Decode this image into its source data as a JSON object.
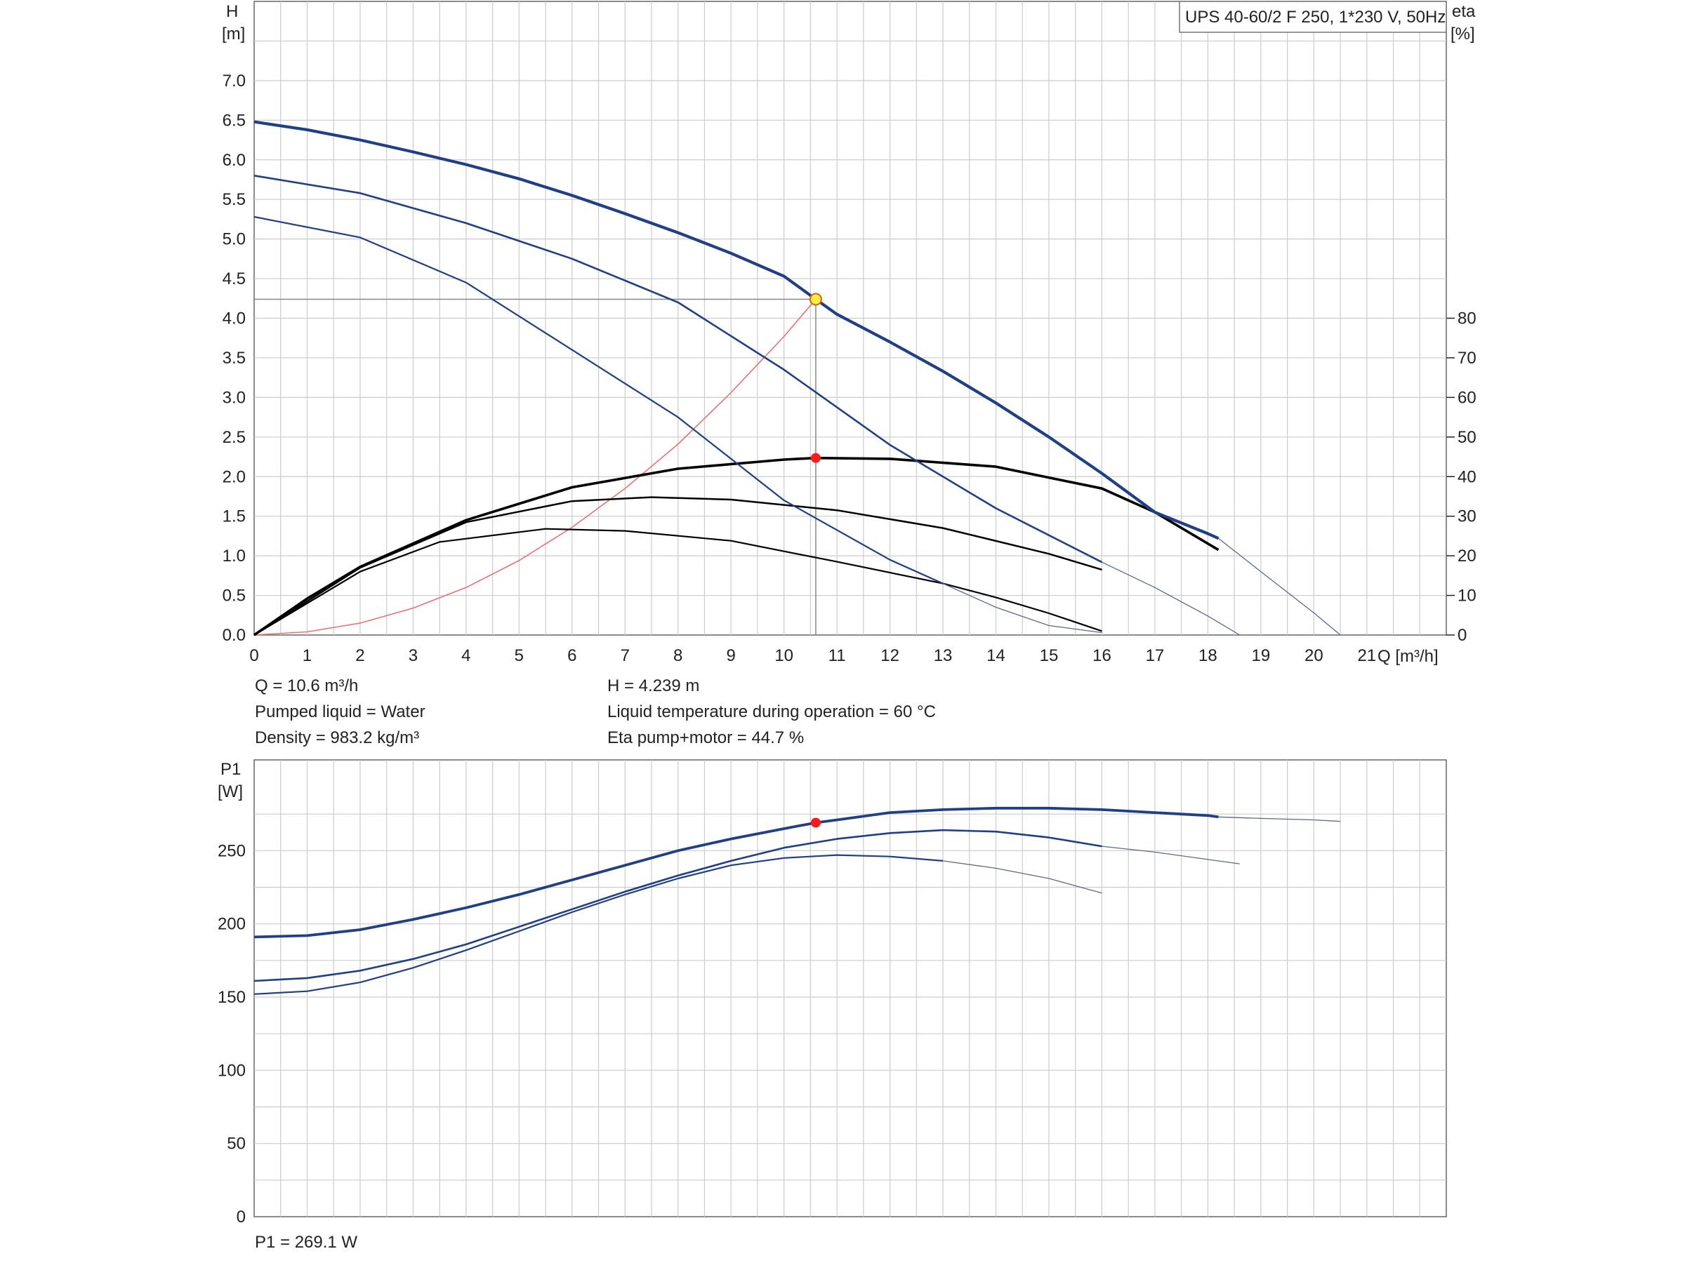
{
  "chart_data": [
    {
      "type": "line",
      "title": "UPS 40-60/2 F 250, 1*230 V, 50Hz",
      "xlabel": "Q [m³/h]",
      "ylabel_top": "H",
      "ylabel_unit": "[m]",
      "y2label_top": "eta",
      "y2label_unit": "[%]",
      "xlim": [
        0,
        22.5
      ],
      "ylim": [
        0,
        8.0
      ],
      "y2lim": [
        0,
        80
      ],
      "grid": true,
      "x_ticks": [
        "0",
        "1",
        "2",
        "3",
        "4",
        "5",
        "6",
        "7",
        "8",
        "9",
        "10",
        "11",
        "12",
        "13",
        "14",
        "15",
        "16",
        "17",
        "18",
        "19",
        "20",
        "21"
      ],
      "y_ticks": [
        "0.0",
        "0.5",
        "1.0",
        "1.5",
        "2.0",
        "2.5",
        "3.0",
        "3.5",
        "4.0",
        "4.5",
        "5.0",
        "5.5",
        "6.0",
        "6.5",
        "7.0"
      ],
      "y2_ticks": [
        "0",
        "10",
        "20",
        "30",
        "40",
        "50",
        "60",
        "70",
        "80"
      ],
      "head_curves": [
        {
          "speed": 3,
          "x": [
            0,
            1,
            2,
            3,
            4,
            5,
            6,
            7,
            8,
            9,
            10,
            10.6,
            11,
            12,
            13,
            14,
            15,
            16,
            17,
            18,
            18.2
          ],
          "y": [
            6.48,
            6.38,
            6.25,
            6.1,
            5.94,
            5.76,
            5.55,
            5.32,
            5.08,
            4.82,
            4.53,
            4.24,
            4.05,
            3.7,
            3.33,
            2.93,
            2.5,
            2.04,
            1.55,
            1.28,
            1.22
          ]
        },
        {
          "speed": 2,
          "x": [
            0,
            2,
            4,
            6,
            8,
            10,
            12,
            14,
            16
          ],
          "y": [
            5.8,
            5.58,
            5.2,
            4.75,
            4.2,
            3.35,
            2.4,
            1.6,
            0.92
          ]
        },
        {
          "speed": 1,
          "x": [
            0,
            2,
            4,
            6,
            8,
            10,
            12,
            13
          ],
          "y": [
            5.28,
            5.02,
            4.45,
            3.6,
            2.75,
            1.7,
            0.95,
            0.65
          ]
        }
      ],
      "head_tails": [
        {
          "x": [
            18.2,
            19,
            20,
            20.5
          ],
          "y": [
            1.22,
            0.8,
            0.28,
            0.0
          ]
        },
        {
          "x": [
            16,
            17,
            18,
            18.6
          ],
          "y": [
            0.92,
            0.6,
            0.24,
            0.0
          ]
        },
        {
          "x": [
            13,
            14,
            15,
            16
          ],
          "y": [
            0.65,
            0.35,
            0.12,
            0.03
          ]
        }
      ],
      "efficiency_curves": [
        {
          "speed": 3,
          "x": [
            0,
            1,
            2,
            4,
            6,
            8,
            10,
            10.6,
            12,
            14,
            16,
            17,
            18.2
          ],
          "y": [
            0,
            9.2,
            17.2,
            29.0,
            37.3,
            42.0,
            44.3,
            44.7,
            44.5,
            42.5,
            37.0,
            31.0,
            21.5
          ]
        },
        {
          "speed": 2,
          "x": [
            0,
            2,
            4,
            6,
            7.5,
            9,
            11,
            13,
            15,
            16
          ],
          "y": [
            0,
            17.0,
            28.5,
            33.8,
            34.8,
            34.2,
            31.5,
            27.0,
            20.5,
            16.5
          ]
        },
        {
          "speed": 1,
          "x": [
            0,
            2,
            3.5,
            5.5,
            7,
            9,
            11,
            13,
            14,
            15,
            16
          ],
          "y": [
            0,
            16.0,
            23.5,
            26.8,
            26.3,
            23.8,
            18.5,
            13.0,
            9.5,
            5.5,
            1.0
          ]
        }
      ],
      "system_curve": {
        "x": [
          0,
          1,
          2,
          3,
          4,
          5,
          6,
          7,
          8,
          9,
          10,
          10.6
        ],
        "y": [
          0.0,
          0.04,
          0.15,
          0.34,
          0.6,
          0.94,
          1.36,
          1.85,
          2.41,
          3.06,
          3.77,
          4.239
        ]
      },
      "duty_point": {
        "x": 10.6,
        "y": 4.239,
        "eta": 44.7
      }
    },
    {
      "type": "line",
      "ylabel_top": "P1",
      "ylabel_unit": "[W]",
      "xlim": [
        0,
        22.5
      ],
      "ylim": [
        0,
        300
      ],
      "grid": true,
      "y_ticks": [
        "0",
        "50",
        "100",
        "150",
        "200",
        "250"
      ],
      "power_curves": [
        {
          "speed": 3,
          "x": [
            0,
            1,
            2,
            3,
            4,
            5,
            6,
            7,
            8,
            9,
            10,
            10.6,
            11,
            12,
            13,
            14,
            15,
            16,
            17,
            18,
            18.2
          ],
          "y": [
            191,
            192,
            196,
            203,
            211,
            220,
            230,
            240,
            250,
            258,
            265,
            269.1,
            271,
            276,
            278,
            279,
            279,
            278,
            276,
            274,
            273
          ]
        },
        {
          "speed": 2,
          "x": [
            0,
            1,
            2,
            3,
            4,
            5,
            6,
            7,
            8,
            9,
            10,
            11,
            12,
            13,
            14,
            15,
            16
          ],
          "y": [
            161,
            163,
            168,
            176,
            186,
            198,
            210,
            222,
            233,
            243,
            252,
            258,
            262,
            264,
            263,
            259,
            253
          ]
        },
        {
          "speed": 1,
          "x": [
            0,
            1,
            2,
            3,
            4,
            5,
            6,
            7,
            8,
            9,
            10,
            11,
            12,
            13
          ],
          "y": [
            152,
            154,
            160,
            170,
            182,
            195,
            208,
            220,
            231,
            240,
            245,
            247,
            246,
            243
          ]
        }
      ],
      "power_tails": [
        {
          "x": [
            18.2,
            19,
            20,
            20.5
          ],
          "y": [
            273,
            272,
            271,
            270
          ]
        },
        {
          "x": [
            16,
            17,
            18,
            18.6
          ],
          "y": [
            253,
            249,
            244,
            241
          ]
        },
        {
          "x": [
            13,
            14,
            15,
            16
          ],
          "y": [
            243,
            238,
            231,
            221
          ]
        }
      ],
      "duty_point": {
        "x": 10.6,
        "y": 269.1
      }
    }
  ],
  "info": {
    "q": "Q = 10.6 m³/h",
    "h": "H = 4.239 m",
    "liquid": "Pumped liquid = Water",
    "temperature": "Liquid temperature during operation = 60 °C",
    "density": "Density = 983.2 kg/m³",
    "eta": "Eta pump+motor = 44.7 %",
    "p1": "P1 = 269.1 W"
  },
  "colors": {
    "head_curve": "#1f3f86",
    "efficiency_curve": "#000000",
    "system_curve": "#f07070",
    "duty_point": "#ff1a1a",
    "duty_point_marker": "#ffee44",
    "grid": "#cccccc",
    "guide": "#888888"
  }
}
